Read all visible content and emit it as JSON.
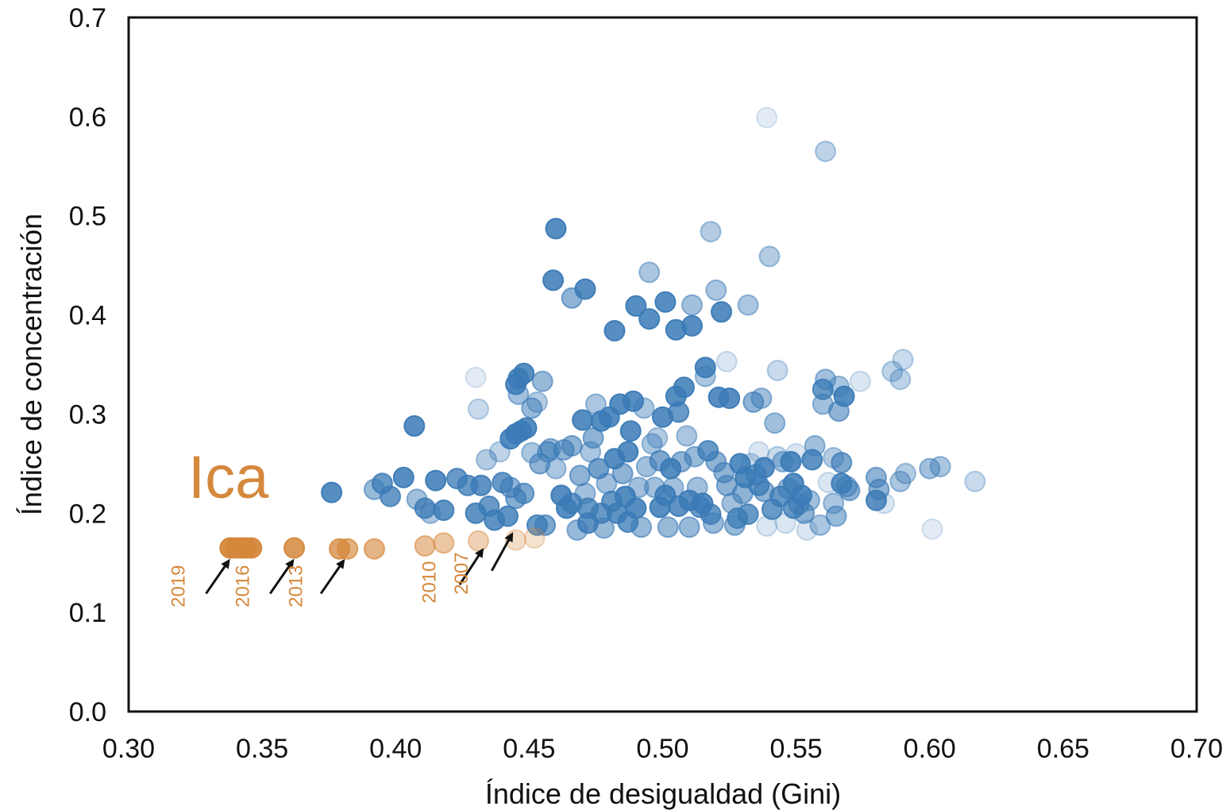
{
  "chart_data": {
    "type": "scatter",
    "title": "",
    "xlabel": "Índice de desigualdad (Gini)",
    "ylabel": "Índice de concentración",
    "xlim": [
      0.3,
      0.7
    ],
    "ylim": [
      0.0,
      0.7
    ],
    "x_ticks": [
      "0.30",
      "0.35",
      "0.40",
      "0.45",
      "0.50",
      "0.55",
      "0.60",
      "0.65",
      "0.70"
    ],
    "y_ticks": [
      "0.0",
      "0.1",
      "0.2",
      "0.3",
      "0.4",
      "0.5",
      "0.6",
      "0.7"
    ],
    "grid": false,
    "colors": {
      "other_regions": "#3a7ab6",
      "highlight": "#d5883c",
      "arrow": "#111111"
    },
    "highlight_label": "Ica",
    "year_labels": [
      {
        "text": "2019",
        "x": 0.321,
        "y": 0.105
      },
      {
        "text": "2016",
        "x": 0.345,
        "y": 0.105
      },
      {
        "text": "2013",
        "x": 0.365,
        "y": 0.105
      },
      {
        "text": "2010",
        "x": 0.415,
        "y": 0.109
      },
      {
        "text": "2007",
        "x": 0.427,
        "y": 0.118
      }
    ],
    "arrows": [
      {
        "from": [
          0.329,
          0.119
        ],
        "to": [
          0.338,
          0.154
        ]
      },
      {
        "from": [
          0.353,
          0.119
        ],
        "to": [
          0.362,
          0.154
        ]
      },
      {
        "from": [
          0.372,
          0.119
        ],
        "to": [
          0.381,
          0.154
        ]
      },
      {
        "from": [
          0.424,
          0.128
        ],
        "to": [
          0.433,
          0.165
        ]
      },
      {
        "from": [
          0.436,
          0.142
        ],
        "to": [
          0.444,
          0.181
        ]
      }
    ],
    "series": [
      {
        "role": "highlight",
        "points": [
          [
            0.338,
            0.165,
            1
          ],
          [
            0.34,
            0.165,
            1
          ],
          [
            0.342,
            0.165,
            1
          ],
          [
            0.344,
            0.165,
            1
          ],
          [
            0.346,
            0.165,
            1
          ],
          [
            0.362,
            0.165,
            0.9
          ],
          [
            0.379,
            0.164,
            0.8
          ],
          [
            0.382,
            0.164,
            0.7
          ],
          [
            0.392,
            0.164,
            0.65
          ],
          [
            0.411,
            0.167,
            0.55
          ],
          [
            0.418,
            0.17,
            0.5
          ],
          [
            0.431,
            0.172,
            0.4
          ],
          [
            0.445,
            0.173,
            0.3
          ],
          [
            0.452,
            0.175,
            0.25
          ]
        ]
      },
      {
        "role": "other",
        "points": [
          [
            0.376,
            0.221,
            0.9
          ],
          [
            0.392,
            0.224,
            0.55
          ],
          [
            0.395,
            0.23,
            0.8
          ],
          [
            0.398,
            0.217,
            0.8
          ],
          [
            0.403,
            0.236,
            0.9
          ],
          [
            0.408,
            0.214,
            0.5
          ],
          [
            0.411,
            0.205,
            0.8
          ],
          [
            0.413,
            0.2,
            0.45
          ],
          [
            0.415,
            0.233,
            0.9
          ],
          [
            0.418,
            0.203,
            0.85
          ],
          [
            0.407,
            0.288,
            0.9
          ],
          [
            0.423,
            0.235,
            0.8
          ],
          [
            0.427,
            0.228,
            0.8
          ],
          [
            0.43,
            0.2,
            0.85
          ],
          [
            0.432,
            0.228,
            0.85
          ],
          [
            0.435,
            0.207,
            0.8
          ],
          [
            0.437,
            0.193,
            0.85
          ],
          [
            0.44,
            0.231,
            0.8
          ],
          [
            0.442,
            0.197,
            0.85
          ],
          [
            0.443,
            0.226,
            0.6
          ],
          [
            0.445,
            0.215,
            0.65
          ],
          [
            0.448,
            0.22,
            0.7
          ],
          [
            0.434,
            0.254,
            0.4
          ],
          [
            0.439,
            0.262,
            0.35
          ],
          [
            0.431,
            0.305,
            0.3
          ],
          [
            0.43,
            0.337,
            0.15
          ],
          [
            0.443,
            0.275,
            0.9
          ],
          [
            0.445,
            0.28,
            0.9
          ],
          [
            0.447,
            0.283,
            0.9
          ],
          [
            0.449,
            0.286,
            0.9
          ],
          [
            0.445,
            0.33,
            0.9
          ],
          [
            0.446,
            0.336,
            0.9
          ],
          [
            0.448,
            0.341,
            0.9
          ],
          [
            0.446,
            0.32,
            0.5
          ],
          [
            0.451,
            0.306,
            0.55
          ],
          [
            0.453,
            0.312,
            0.4
          ],
          [
            0.455,
            0.333,
            0.55
          ],
          [
            0.451,
            0.261,
            0.45
          ],
          [
            0.454,
            0.25,
            0.6
          ],
          [
            0.457,
            0.262,
            0.6
          ],
          [
            0.453,
            0.188,
            0.8
          ],
          [
            0.456,
            0.188,
            0.7
          ],
          [
            0.458,
            0.265,
            0.55
          ],
          [
            0.46,
            0.245,
            0.45
          ],
          [
            0.46,
            0.487,
            0.9
          ],
          [
            0.459,
            0.435,
            0.9
          ],
          [
            0.466,
            0.417,
            0.6
          ],
          [
            0.471,
            0.426,
            0.9
          ],
          [
            0.463,
            0.264,
            0.6
          ],
          [
            0.462,
            0.218,
            0.9
          ],
          [
            0.464,
            0.205,
            0.9
          ],
          [
            0.466,
            0.21,
            0.8
          ],
          [
            0.466,
            0.268,
            0.6
          ],
          [
            0.468,
            0.183,
            0.55
          ],
          [
            0.469,
            0.238,
            0.6
          ],
          [
            0.47,
            0.294,
            0.9
          ],
          [
            0.471,
            0.22,
            0.5
          ],
          [
            0.472,
            0.205,
            0.8
          ],
          [
            0.472,
            0.19,
            0.85
          ],
          [
            0.473,
            0.262,
            0.45
          ],
          [
            0.474,
            0.276,
            0.6
          ],
          [
            0.475,
            0.31,
            0.45
          ],
          [
            0.476,
            0.245,
            0.75
          ],
          [
            0.477,
            0.293,
            0.9
          ],
          [
            0.477,
            0.2,
            0.8
          ],
          [
            0.478,
            0.185,
            0.55
          ],
          [
            0.479,
            0.23,
            0.5
          ],
          [
            0.48,
            0.297,
            0.9
          ],
          [
            0.481,
            0.212,
            0.8
          ],
          [
            0.482,
            0.255,
            0.9
          ],
          [
            0.482,
            0.384,
            0.9
          ],
          [
            0.483,
            0.2,
            0.85
          ],
          [
            0.484,
            0.31,
            0.9
          ],
          [
            0.485,
            0.24,
            0.6
          ],
          [
            0.486,
            0.217,
            0.9
          ],
          [
            0.487,
            0.262,
            0.9
          ],
          [
            0.487,
            0.191,
            0.8
          ],
          [
            0.488,
            0.283,
            0.9
          ],
          [
            0.489,
            0.313,
            0.9
          ],
          [
            0.49,
            0.409,
            0.9
          ],
          [
            0.49,
            0.205,
            0.9
          ],
          [
            0.491,
            0.226,
            0.5
          ],
          [
            0.492,
            0.186,
            0.55
          ],
          [
            0.493,
            0.306,
            0.45
          ],
          [
            0.494,
            0.247,
            0.5
          ],
          [
            0.495,
            0.443,
            0.45
          ],
          [
            0.495,
            0.396,
            0.9
          ],
          [
            0.496,
            0.27,
            0.45
          ],
          [
            0.497,
            0.226,
            0.5
          ],
          [
            0.498,
            0.276,
            0.4
          ],
          [
            0.499,
            0.206,
            0.9
          ],
          [
            0.499,
            0.253,
            0.7
          ],
          [
            0.5,
            0.297,
            0.9
          ],
          [
            0.501,
            0.218,
            0.9
          ],
          [
            0.501,
            0.413,
            0.9
          ],
          [
            0.502,
            0.186,
            0.55
          ],
          [
            0.503,
            0.245,
            0.9
          ],
          [
            0.504,
            0.226,
            0.5
          ],
          [
            0.505,
            0.385,
            0.9
          ],
          [
            0.505,
            0.318,
            0.9
          ],
          [
            0.506,
            0.302,
            0.8
          ],
          [
            0.506,
            0.207,
            0.85
          ],
          [
            0.507,
            0.252,
            0.6
          ],
          [
            0.508,
            0.327,
            0.9
          ],
          [
            0.509,
            0.278,
            0.45
          ],
          [
            0.51,
            0.213,
            0.9
          ],
          [
            0.51,
            0.186,
            0.55
          ],
          [
            0.511,
            0.41,
            0.5
          ],
          [
            0.511,
            0.389,
            0.9
          ],
          [
            0.512,
            0.257,
            0.55
          ],
          [
            0.513,
            0.226,
            0.5
          ],
          [
            0.514,
            0.206,
            0.8
          ],
          [
            0.515,
            0.21,
            0.9
          ],
          [
            0.516,
            0.338,
            0.45
          ],
          [
            0.516,
            0.347,
            0.9
          ],
          [
            0.517,
            0.263,
            0.8
          ],
          [
            0.518,
            0.484,
            0.4
          ],
          [
            0.518,
            0.199,
            0.8
          ],
          [
            0.519,
            0.19,
            0.55
          ],
          [
            0.52,
            0.425,
            0.45
          ],
          [
            0.52,
            0.252,
            0.6
          ],
          [
            0.521,
            0.317,
            0.9
          ],
          [
            0.522,
            0.403,
            0.9
          ],
          [
            0.523,
            0.241,
            0.6
          ],
          [
            0.524,
            0.353,
            0.2
          ],
          [
            0.524,
            0.228,
            0.6
          ],
          [
            0.525,
            0.316,
            0.9
          ],
          [
            0.526,
            0.21,
            0.5
          ],
          [
            0.527,
            0.188,
            0.55
          ],
          [
            0.528,
            0.195,
            0.8
          ],
          [
            0.529,
            0.25,
            0.9
          ],
          [
            0.53,
            0.22,
            0.6
          ],
          [
            0.531,
            0.236,
            0.9
          ],
          [
            0.532,
            0.199,
            0.8
          ],
          [
            0.532,
            0.41,
            0.45
          ],
          [
            0.533,
            0.25,
            0.3
          ],
          [
            0.534,
            0.312,
            0.6
          ],
          [
            0.535,
            0.239,
            0.7
          ],
          [
            0.536,
            0.228,
            0.8
          ],
          [
            0.536,
            0.262,
            0.2
          ],
          [
            0.537,
            0.316,
            0.5
          ],
          [
            0.538,
            0.246,
            0.9
          ],
          [
            0.538,
            0.222,
            0.6
          ],
          [
            0.539,
            0.599,
            0.15
          ],
          [
            0.539,
            0.187,
            0.2
          ],
          [
            0.54,
            0.459,
            0.4
          ],
          [
            0.541,
            0.204,
            0.8
          ],
          [
            0.542,
            0.291,
            0.5
          ],
          [
            0.543,
            0.257,
            0.3
          ],
          [
            0.543,
            0.344,
            0.3
          ],
          [
            0.544,
            0.217,
            0.8
          ],
          [
            0.545,
            0.252,
            0.5
          ],
          [
            0.546,
            0.19,
            0.2
          ],
          [
            0.547,
            0.225,
            0.6
          ],
          [
            0.548,
            0.252,
            0.9
          ],
          [
            0.549,
            0.205,
            0.8
          ],
          [
            0.549,
            0.23,
            0.9
          ],
          [
            0.55,
            0.26,
            0.2
          ],
          [
            0.551,
            0.209,
            0.6
          ],
          [
            0.552,
            0.218,
            0.9
          ],
          [
            0.553,
            0.2,
            0.6
          ],
          [
            0.554,
            0.183,
            0.2
          ],
          [
            0.555,
            0.213,
            0.5
          ],
          [
            0.556,
            0.254,
            0.85
          ],
          [
            0.557,
            0.268,
            0.5
          ],
          [
            0.559,
            0.188,
            0.45
          ],
          [
            0.56,
            0.325,
            0.8
          ],
          [
            0.56,
            0.31,
            0.5
          ],
          [
            0.561,
            0.565,
            0.35
          ],
          [
            0.561,
            0.335,
            0.5
          ],
          [
            0.562,
            0.231,
            0.2
          ],
          [
            0.564,
            0.21,
            0.45
          ],
          [
            0.564,
            0.256,
            0.4
          ],
          [
            0.565,
            0.197,
            0.55
          ],
          [
            0.566,
            0.328,
            0.45
          ],
          [
            0.566,
            0.303,
            0.6
          ],
          [
            0.567,
            0.23,
            0.85
          ],
          [
            0.567,
            0.251,
            0.7
          ],
          [
            0.568,
            0.318,
            0.9
          ],
          [
            0.569,
            0.227,
            0.55
          ],
          [
            0.57,
            0.223,
            0.6
          ],
          [
            0.574,
            0.333,
            0.2
          ],
          [
            0.58,
            0.236,
            0.6
          ],
          [
            0.58,
            0.213,
            0.85
          ],
          [
            0.581,
            0.224,
            0.6
          ],
          [
            0.583,
            0.21,
            0.2
          ],
          [
            0.586,
            0.343,
            0.35
          ],
          [
            0.589,
            0.335,
            0.35
          ],
          [
            0.589,
            0.232,
            0.45
          ],
          [
            0.59,
            0.355,
            0.3
          ],
          [
            0.591,
            0.24,
            0.4
          ],
          [
            0.6,
            0.245,
            0.5
          ],
          [
            0.601,
            0.184,
            0.15
          ],
          [
            0.604,
            0.247,
            0.45
          ],
          [
            0.617,
            0.232,
            0.3
          ]
        ]
      }
    ]
  }
}
